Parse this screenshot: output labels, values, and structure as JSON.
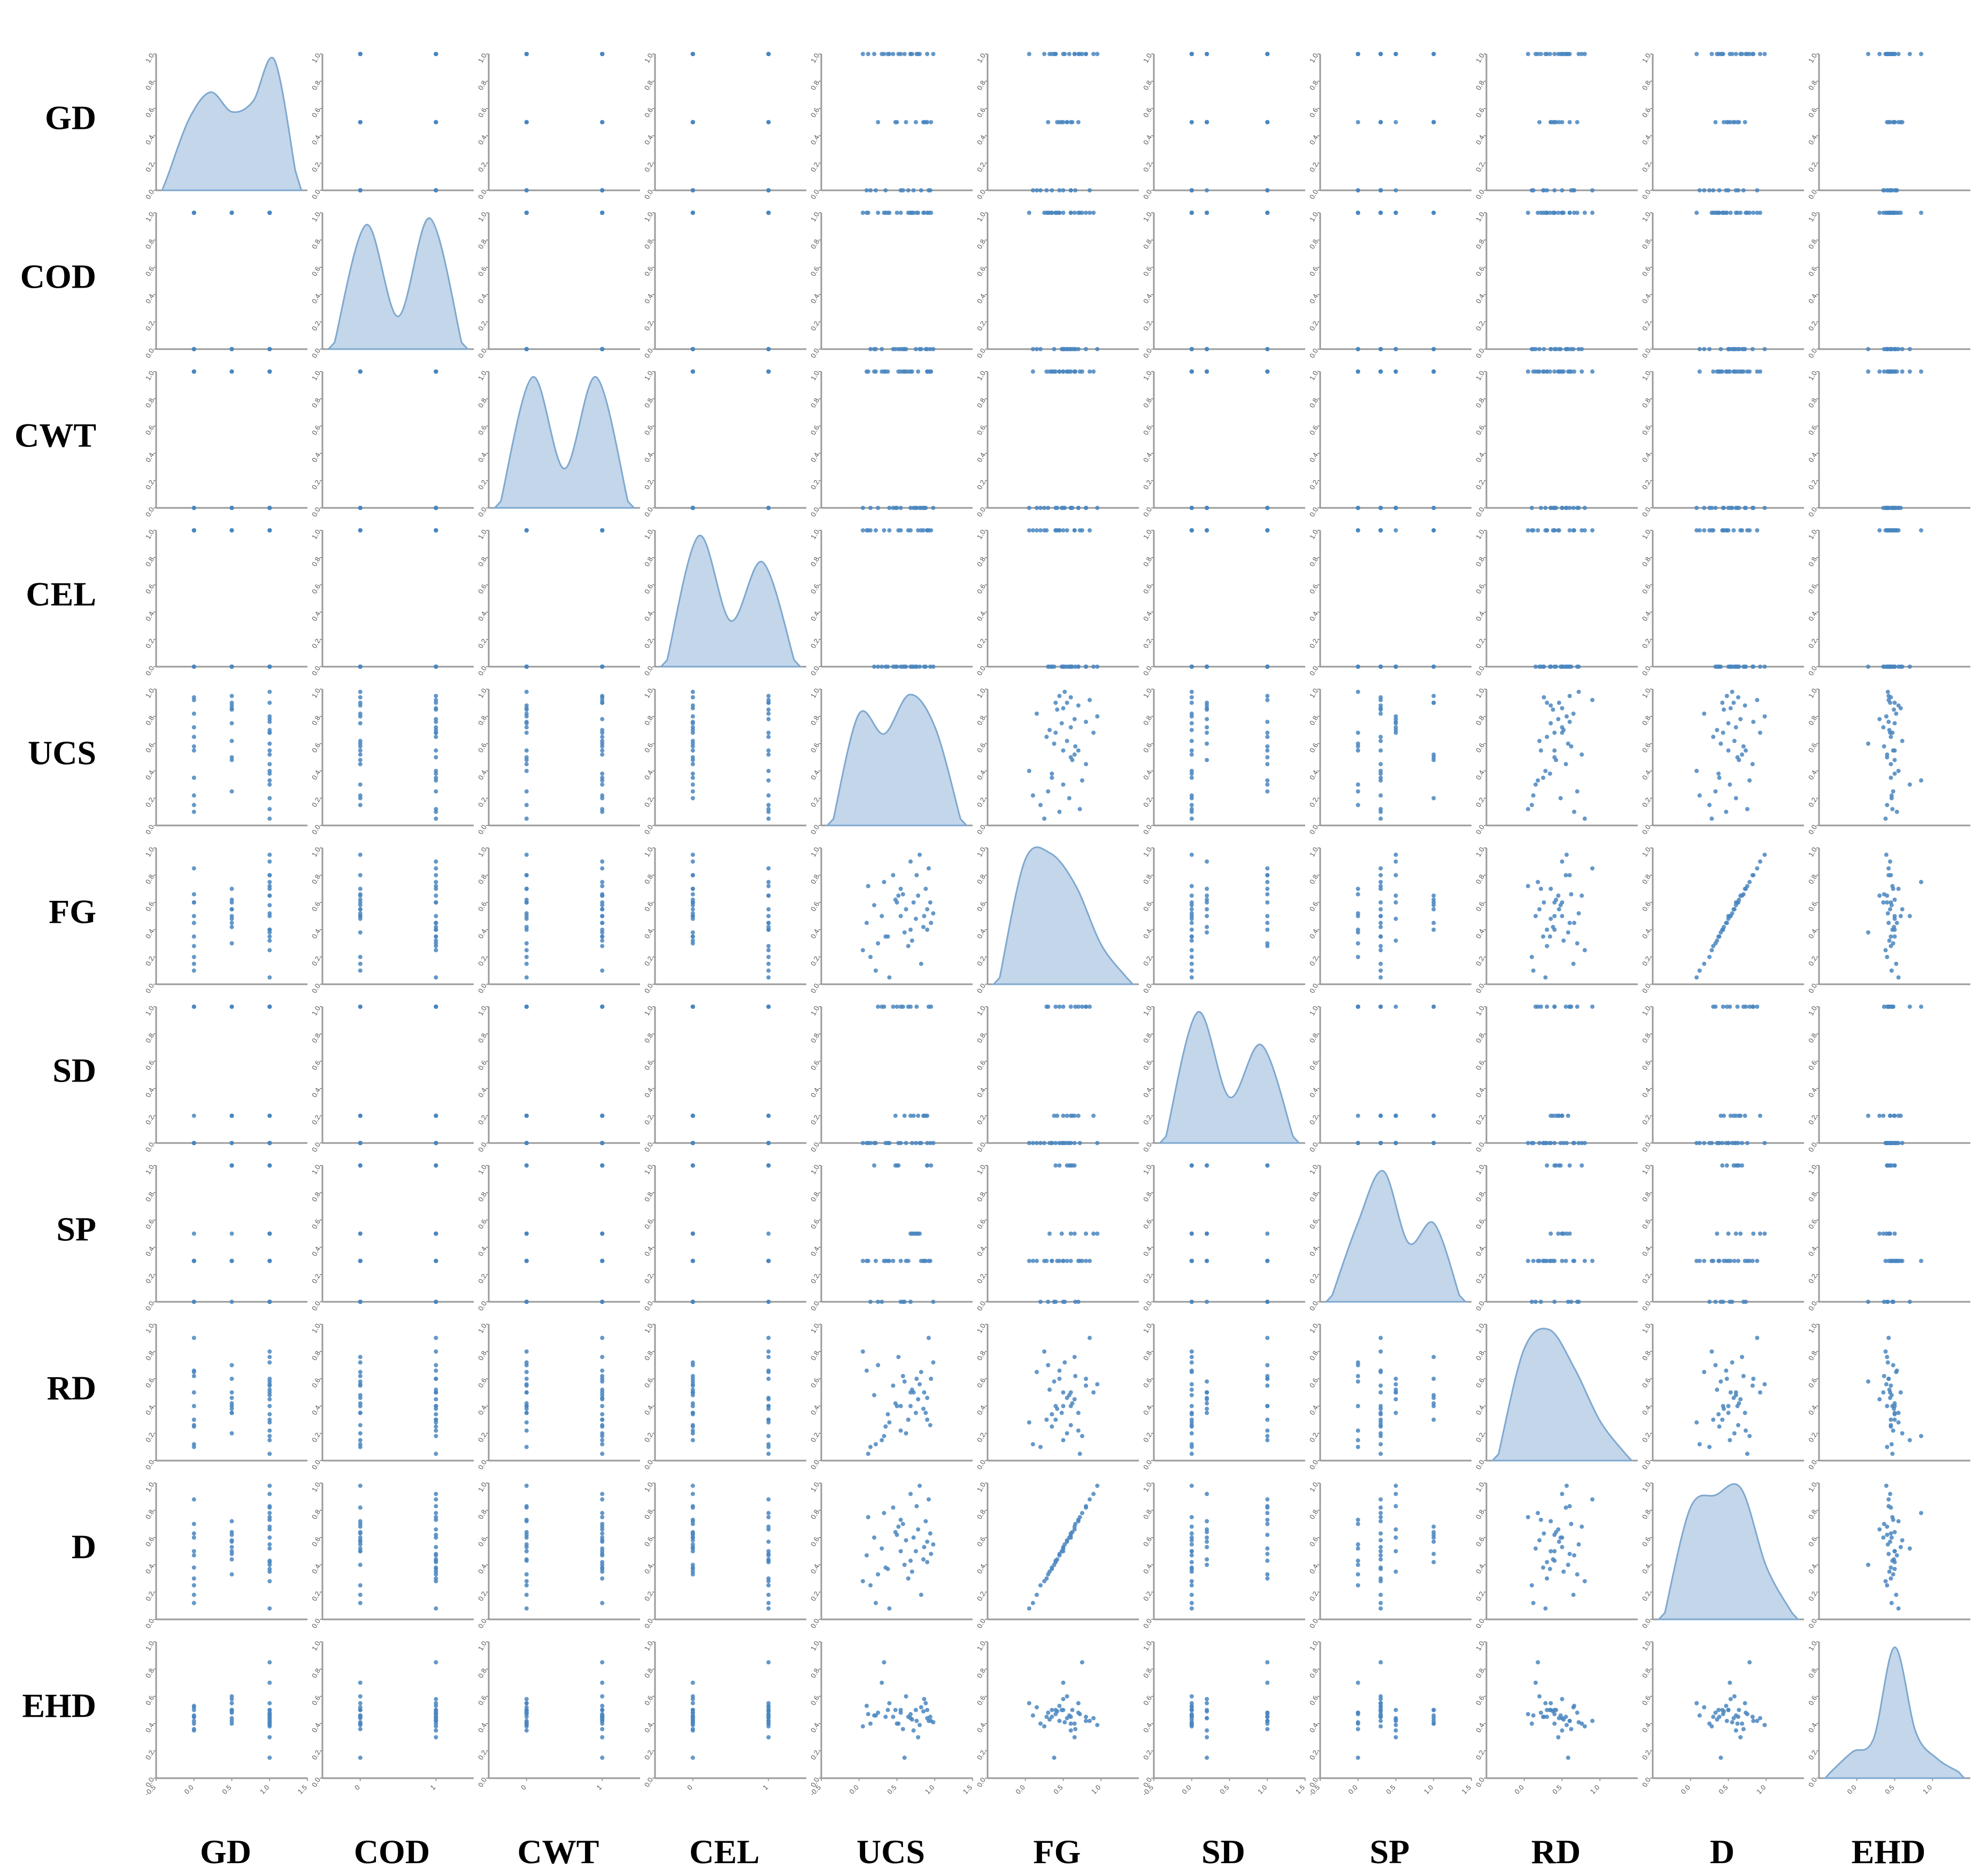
{
  "chart_data": {
    "type": "scatter",
    "layout": "pairplot",
    "diagonal": "kde",
    "variables": [
      "GD",
      "COD",
      "CWT",
      "CEL",
      "UCS",
      "FG",
      "SD",
      "SP",
      "RD",
      "D",
      "EHD"
    ],
    "row_labels": [
      "GD",
      "COD",
      "CWT",
      "CEL",
      "UCS",
      "FG",
      "SD",
      "SP",
      "RD",
      "D",
      "EHD"
    ],
    "col_labels": [
      "GD",
      "COD",
      "CWT",
      "CEL",
      "UCS",
      "FG",
      "SD",
      "SP",
      "RD",
      "D",
      "EHD"
    ],
    "ylim": [
      0,
      1.0
    ],
    "y_ticks": [
      "0.0",
      "0.2",
      "0.4",
      "0.6",
      "0.8",
      "1.0"
    ],
    "x_ticks": [
      [
        "-0.5",
        "0.0",
        "0.5",
        "1.0",
        "1.5"
      ],
      [
        "0",
        "1"
      ],
      [
        "0",
        "1"
      ],
      [
        "0",
        "1"
      ],
      [
        "-0.5",
        "0.0",
        "0.5",
        "1.0",
        "1.5"
      ],
      [
        "0.0",
        "0.5",
        "1.0"
      ],
      [
        "-0.5",
        "0.0",
        "0.5",
        "1.0",
        "1.5"
      ],
      [
        "-0.5",
        "0.0",
        "0.5",
        "1.0",
        "1.5"
      ],
      [
        "0.0",
        "0.5",
        "1.0"
      ],
      [
        "0.0",
        "0.5",
        "1.0"
      ],
      [
        "0.0",
        "0.5",
        "1.0"
      ]
    ],
    "xlims": [
      [
        -0.5,
        1.5
      ],
      [
        -0.5,
        1.5
      ],
      [
        -0.5,
        1.5
      ],
      [
        -0.5,
        1.5
      ],
      [
        -0.5,
        1.5
      ],
      [
        -0.5,
        1.5
      ],
      [
        -0.5,
        1.5
      ],
      [
        -0.5,
        1.5
      ],
      [
        -0.5,
        1.5
      ],
      [
        -0.5,
        1.5
      ],
      [
        -0.5,
        1.5
      ]
    ],
    "marginal_density": [
      [
        0.12,
        0.55,
        0.75,
        0.6,
        0.68,
        1.0,
        0.15
      ],
      [
        0.05,
        0.95,
        0.25,
        1.0,
        0.05
      ],
      [
        0.05,
        1.0,
        0.3,
        1.0,
        0.05
      ],
      [
        0.05,
        1.0,
        0.35,
        0.8,
        0.05
      ],
      [
        0.05,
        0.85,
        0.7,
        1.0,
        0.75,
        0.05
      ],
      [
        0.05,
        0.95,
        1.0,
        0.75,
        0.3,
        0.05
      ],
      [
        0.05,
        1.0,
        0.35,
        0.75,
        0.05
      ],
      [
        0.05,
        0.6,
        1.0,
        0.45,
        0.6,
        0.05
      ],
      [
        0.05,
        0.85,
        1.0,
        0.7,
        0.3,
        0.05
      ],
      [
        0.05,
        0.85,
        0.95,
        1.0,
        0.4,
        0.05
      ],
      [
        0.05,
        0.2,
        0.3,
        1.0,
        0.35,
        0.15,
        0.05
      ]
    ],
    "samples": {
      "GD": [
        0.0,
        0.0,
        0.0,
        0.0,
        0.5,
        0.5,
        0.5,
        0.5,
        1.0,
        1.0,
        1.0,
        1.0,
        1.0,
        1.0,
        0.0,
        0.5,
        1.0,
        1.0,
        0.5,
        0.0,
        1.0,
        1.0,
        0.0,
        0.5,
        1.0,
        1.0,
        1.0,
        0.5,
        0.0,
        1.0,
        0.0,
        1.0,
        0.5,
        1.0,
        1.0,
        0.0,
        0.5,
        1.0,
        1.0,
        0.0
      ],
      "COD": [
        0,
        1,
        0,
        1,
        0,
        1,
        1,
        0,
        1,
        0,
        1,
        1,
        0,
        1,
        0,
        1,
        1,
        0,
        0,
        1,
        1,
        0,
        0,
        1,
        1,
        1,
        0,
        0,
        1,
        0,
        1,
        1,
        0,
        1,
        1,
        0,
        1,
        0,
        1,
        0
      ],
      "CWT": [
        0,
        1,
        1,
        0,
        0,
        1,
        0,
        1,
        1,
        0,
        1,
        0,
        1,
        1,
        0,
        0,
        1,
        1,
        0,
        1,
        0,
        1,
        1,
        0,
        1,
        1,
        0,
        0,
        1,
        0,
        1,
        0,
        1,
        1,
        0,
        1,
        0,
        1,
        0,
        1
      ],
      "CEL": [
        1,
        0,
        1,
        0,
        0,
        1,
        0,
        0,
        1,
        0,
        1,
        1,
        0,
        0,
        1,
        0,
        1,
        0,
        0,
        1,
        1,
        0,
        0,
        1,
        0,
        1,
        0,
        0,
        1,
        0,
        1,
        0,
        1,
        0,
        0,
        1,
        0,
        1,
        1,
        0
      ],
      "UCS": [
        0.15,
        0.35,
        0.55,
        0.72,
        0.88,
        0.95,
        0.25,
        0.62,
        0.78,
        0.45,
        0.9,
        0.05,
        0.3,
        0.68,
        0.82,
        0.5,
        0.12,
        0.6,
        0.75,
        0.92,
        0.4,
        0.2,
        0.58,
        0.85,
        0.7,
        0.33,
        0.98,
        0.48,
        0.65,
        0.8,
        0.1,
        0.55,
        0.9,
        0.38,
        0.76,
        0.22,
        0.86,
        0.52,
        0.68,
        0.94
      ],
      "FG": [
        0.2,
        0.35,
        0.5,
        0.6,
        0.7,
        0.45,
        0.3,
        0.55,
        0.65,
        0.8,
        0.4,
        0.25,
        0.5,
        0.9,
        0.15,
        0.6,
        0.72,
        0.38,
        0.48,
        0.85,
        0.05,
        0.58,
        0.66,
        0.42,
        0.32,
        0.75,
        0.52,
        0.62,
        0.28,
        0.95,
        0.45,
        0.7,
        0.55,
        0.35,
        0.8,
        0.1,
        0.5,
        0.65,
        0.4,
        0.6
      ],
      "SD": [
        0.0,
        0.0,
        0.0,
        0.2,
        0.2,
        1.0,
        1.0,
        0.0,
        0.2,
        1.0,
        0.0,
        0.0,
        1.0,
        0.2,
        0.0,
        1.0,
        0.0,
        0.2,
        0.0,
        1.0,
        0.0,
        0.0,
        1.0,
        0.2,
        0.0,
        1.0,
        0.0,
        0.2,
        1.0,
        0.0,
        0.0,
        1.0,
        0.2,
        0.0,
        1.0,
        0.0,
        0.2,
        0.0,
        1.0,
        0.0
      ],
      "SP": [
        0.0,
        0.3,
        0.3,
        0.5,
        0.3,
        1.0,
        0.0,
        0.3,
        0.5,
        0.3,
        1.0,
        0.3,
        0.0,
        0.5,
        0.3,
        1.0,
        0.3,
        0.0,
        0.5,
        0.3,
        0.3,
        1.0,
        0.0,
        0.3,
        0.5,
        0.3,
        0.0,
        1.0,
        0.3,
        0.5,
        0.3,
        0.0,
        1.0,
        0.3,
        0.5,
        0.3,
        0.3,
        1.0,
        0.0,
        0.3
      ],
      "RD": [
        0.1,
        0.25,
        0.4,
        0.5,
        0.35,
        0.6,
        0.7,
        0.2,
        0.45,
        0.55,
        0.3,
        0.8,
        0.15,
        0.5,
        0.65,
        0.4,
        0.05,
        0.58,
        0.35,
        0.9,
        0.28,
        0.48,
        0.62,
        0.38,
        0.52,
        0.18,
        0.72,
        0.42,
        0.3,
        0.56,
        0.66,
        0.22,
        0.46,
        0.34,
        0.6,
        0.12,
        0.5,
        0.76,
        0.4,
        0.26
      ],
      "D": [
        0.25,
        0.38,
        0.5,
        0.6,
        0.72,
        0.48,
        0.33,
        0.58,
        0.66,
        0.82,
        0.42,
        0.28,
        0.52,
        0.92,
        0.18,
        0.62,
        0.75,
        0.4,
        0.5,
        0.88,
        0.08,
        0.6,
        0.7,
        0.44,
        0.35,
        0.78,
        0.55,
        0.64,
        0.3,
        0.98,
        0.47,
        0.73,
        0.57,
        0.37,
        0.83,
        0.12,
        0.53,
        0.68,
        0.43,
        0.63
      ],
      "EHD": [
        0.4,
        0.45,
        0.5,
        0.35,
        0.55,
        0.42,
        0.48,
        0.6,
        0.3,
        0.45,
        0.5,
        0.38,
        0.7,
        0.44,
        0.52,
        0.4,
        0.47,
        0.15,
        0.5,
        0.42,
        0.55,
        0.46,
        0.36,
        0.49,
        0.43,
        0.85,
        0.41,
        0.5,
        0.45,
        0.39,
        0.53,
        0.48,
        0.44,
        0.5,
        0.42,
        0.46,
        0.58,
        0.4,
        0.47,
        0.45
      ]
    }
  }
}
